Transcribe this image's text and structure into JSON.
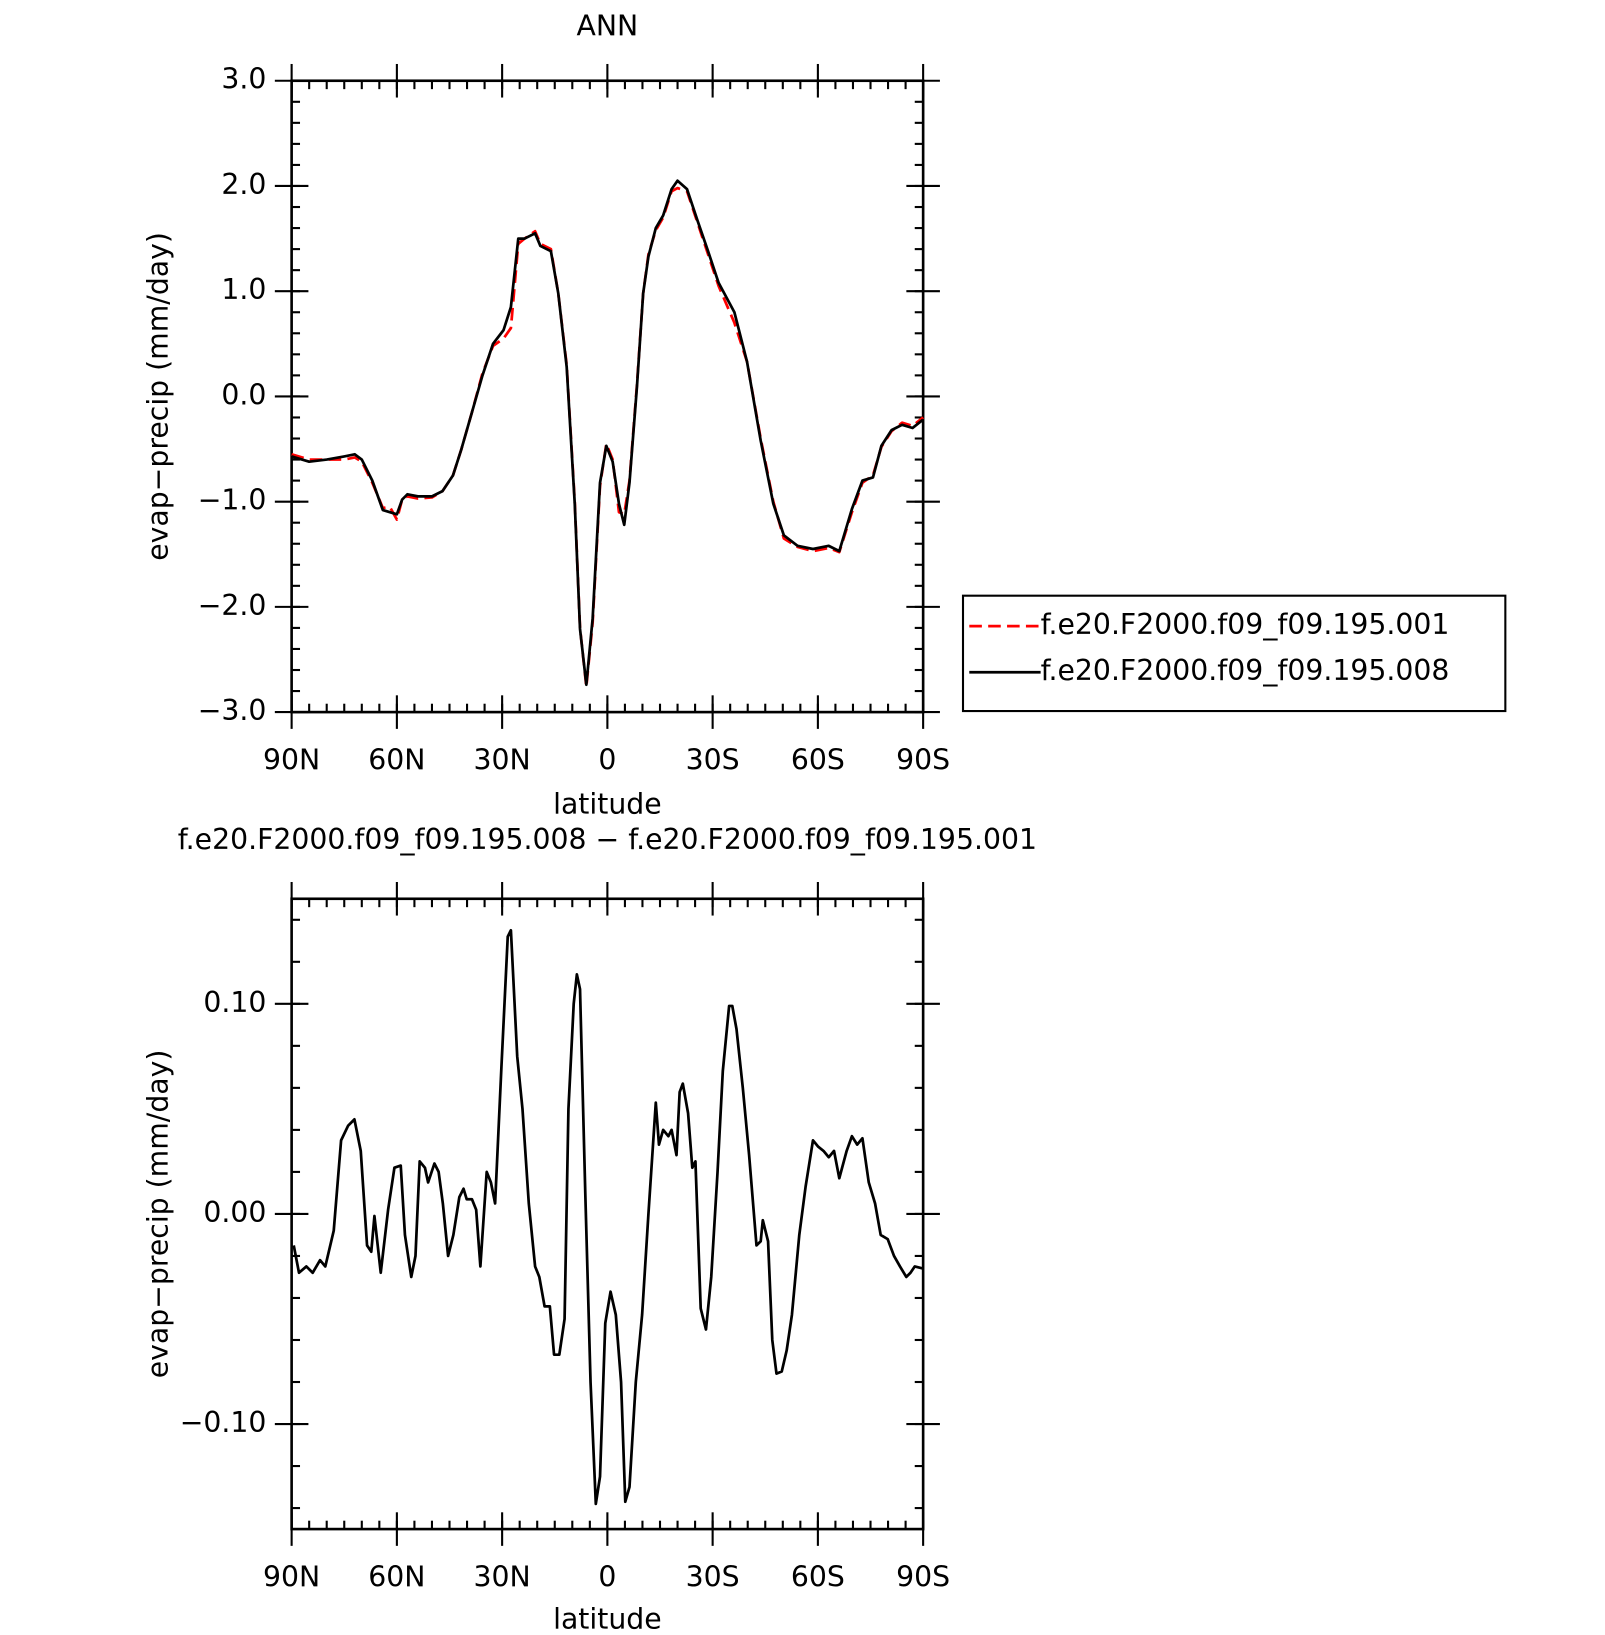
{
  "chart_data": [
    {
      "type": "line",
      "title": "ANN",
      "x_label": "latitude",
      "y_label": "evap−precip (mm/day)",
      "xlim": [
        90,
        -90
      ],
      "ylim": [
        -3,
        3
      ],
      "xticks": [
        {
          "value": 90,
          "label": "90N"
        },
        {
          "value": 60,
          "label": "60N"
        },
        {
          "value": 30,
          "label": "30N"
        },
        0,
        {
          "value": -30,
          "label": "30S"
        },
        {
          "value": -60,
          "label": "60S"
        },
        {
          "value": -90,
          "label": "90S"
        }
      ],
      "yticks": [
        {
          "value": -3,
          "label": "−3.0"
        },
        {
          "value": -2,
          "label": "−2.0"
        },
        {
          "value": -1,
          "label": "−1.0"
        },
        {
          "value": 0,
          "label": "0.0"
        },
        {
          "value": 1,
          "label": "1.0"
        },
        {
          "value": 2,
          "label": "2.0"
        },
        {
          "value": 3,
          "label": "3.0"
        }
      ],
      "x_minor_divisions": 6,
      "y_minor_divisions": 5,
      "legend": "right",
      "x": [
        90,
        85,
        80,
        75,
        72,
        70,
        67,
        64,
        62,
        60,
        58.5,
        57,
        54,
        50,
        47,
        44,
        41.6,
        38.6,
        35.6,
        32.6,
        29.6,
        27.5,
        25.4,
        23.6,
        20.6,
        19.1,
        16.1,
        14,
        11.6,
        9.3,
        7.8,
        6,
        4.2,
        2.1,
        0.3,
        -1.5,
        -3.3,
        -4.8,
        -6.3,
        -8.4,
        -10.2,
        -11.7,
        -13.8,
        -15.9,
        -18.3,
        -20,
        -22.7,
        -25.7,
        -28.7,
        -31.7,
        -36.2,
        -39.8,
        -43.7,
        -47.3,
        -50.3,
        -54.2,
        -58.6,
        -63.1,
        -66.1,
        -69.7,
        -72.7,
        -75.7,
        -78.1,
        -81,
        -84,
        -87,
        -90
      ],
      "series": [
        {
          "name": "f.e20.F2000.f09_f09.195.001",
          "color": "#ff0000",
          "dashed": true,
          "values": [
            -0.55,
            -0.6,
            -0.6,
            -0.6,
            -0.58,
            -0.62,
            -0.82,
            -1.06,
            -1.05,
            -1.17,
            -0.98,
            -0.95,
            -0.97,
            -0.96,
            -0.9,
            -0.75,
            -0.5,
            -0.15,
            0.22,
            0.48,
            0.55,
            0.65,
            1.45,
            1.5,
            1.57,
            1.45,
            1.4,
            0.98,
            0.3,
            -1.0,
            -2.2,
            -2.76,
            -2.15,
            -0.85,
            -0.45,
            -0.6,
            -1.1,
            -1.12,
            -0.8,
            0.1,
            0.98,
            1.35,
            1.58,
            1.7,
            1.95,
            1.98,
            1.95,
            1.65,
            1.35,
            1.05,
            0.7,
            0.33,
            -0.4,
            -1.0,
            -1.35,
            -1.43,
            -1.47,
            -1.44,
            -1.48,
            -1.1,
            -0.82,
            -0.75,
            -0.48,
            -0.33,
            -0.25,
            -0.28,
            -0.2
          ]
        },
        {
          "name": "f.e20.F2000.f09_f09.195.008",
          "color": "#000000",
          "dashed": false,
          "values": [
            -0.57,
            -0.62,
            -0.6,
            -0.57,
            -0.55,
            -0.6,
            -0.8,
            -1.08,
            -1.1,
            -1.12,
            -0.98,
            -0.93,
            -0.95,
            -0.95,
            -0.9,
            -0.75,
            -0.5,
            -0.15,
            0.2,
            0.5,
            0.63,
            0.85,
            1.5,
            1.5,
            1.55,
            1.43,
            1.38,
            0.98,
            0.28,
            -1.02,
            -2.21,
            -2.74,
            -2.11,
            -0.82,
            -0.47,
            -0.62,
            -1.02,
            -1.22,
            -0.82,
            0.08,
            0.98,
            1.33,
            1.6,
            1.72,
            1.97,
            2.05,
            1.97,
            1.67,
            1.38,
            1.08,
            0.8,
            0.33,
            -0.42,
            -1.02,
            -1.32,
            -1.42,
            -1.45,
            -1.42,
            -1.47,
            -1.07,
            -0.8,
            -0.77,
            -0.47,
            -0.32,
            -0.27,
            -0.3,
            -0.22
          ]
        }
      ]
    },
    {
      "type": "line",
      "title": "f.e20.F2000.f09_f09.195.008 − f.e20.F2000.f09_f09.195.001",
      "x_label": "latitude",
      "y_label": "evap−precip (mm/day)",
      "xlim": [
        90,
        -90
      ],
      "ylim": [
        -0.15,
        0.15
      ],
      "xticks": [
        {
          "value": 90,
          "label": "90N"
        },
        {
          "value": 60,
          "label": "60N"
        },
        {
          "value": 30,
          "label": "30N"
        },
        0,
        {
          "value": -30,
          "label": "30S"
        },
        {
          "value": -60,
          "label": "60S"
        },
        {
          "value": -90,
          "label": "90S"
        }
      ],
      "yticks": [
        {
          "value": -0.1,
          "label": "−0.10"
        },
        {
          "value": 0,
          "label": "0.00"
        },
        {
          "value": 0.1,
          "label": "0.10"
        }
      ],
      "x_minor_divisions": 6,
      "y_minor_divisions": 5,
      "x": [
        89.4,
        87.9,
        85.8,
        84.0,
        81.9,
        80.4,
        78.0,
        75.9,
        73.9,
        72.1,
        70.3,
        68.5,
        67.3,
        66.4,
        64.6,
        62.5,
        60.7,
        58.9,
        57.7,
        55.9,
        54.7,
        53.5,
        52.0,
        51.1,
        49.3,
        48.1,
        46.9,
        45.4,
        43.9,
        42.2,
        41.0,
        40.1,
        38.6,
        37.4,
        36.2,
        34.4,
        33.2,
        32.0,
        30.2,
        28.4,
        27.5,
        25.7,
        24.2,
        22.4,
        20.6,
        19.4,
        17.9,
        16.4,
        15.2,
        13.7,
        12.2,
        11.1,
        9.6,
        8.7,
        7.8,
        6.3,
        4.8,
        3.3,
        2.1,
        0.6,
        -0.9,
        -2.4,
        -3.9,
        -5.1,
        -6.3,
        -8.1,
        -9.9,
        -11.7,
        -13.8,
        -14.7,
        -15.9,
        -17.4,
        -18.3,
        -19.7,
        -20.6,
        -21.5,
        -23.0,
        -24.2,
        -25.1,
        -26.6,
        -28.1,
        -29.6,
        -31.4,
        -32.9,
        -34.7,
        -35.6,
        -36.8,
        -38.6,
        -40.4,
        -42.5,
        -43.7,
        -44.3,
        -45.8,
        -47.0,
        -48.2,
        -49.7,
        -51.1,
        -52.6,
        -54.7,
        -56.5,
        -58.6,
        -60.1,
        -61.6,
        -63.1,
        -64.6,
        -66.1,
        -68.2,
        -69.7,
        -71.2,
        -72.7,
        -74.5,
        -76.3,
        -77.9,
        -79.9,
        -81.7,
        -83.4,
        -85.2,
        -86.4,
        -87.6,
        -90
      ],
      "series": [
        {
          "color": "#000000",
          "values": [
            -0.015,
            -0.028,
            -0.025,
            -0.028,
            -0.022,
            -0.025,
            -0.008,
            0.035,
            0.042,
            0.045,
            0.03,
            -0.015,
            -0.018,
            -0.001,
            -0.028,
            0.002,
            0.022,
            0.023,
            -0.01,
            -0.03,
            -0.02,
            0.025,
            0.022,
            0.015,
            0.024,
            0.02,
            0.005,
            -0.02,
            -0.01,
            0.008,
            0.012,
            0.007,
            0.007,
            0.002,
            -0.025,
            0.02,
            0.015,
            0.005,
            0.07,
            0.132,
            0.135,
            0.075,
            0.05,
            0.005,
            -0.025,
            -0.03,
            -0.044,
            -0.044,
            -0.067,
            -0.067,
            -0.05,
            0.05,
            0.1,
            0.114,
            0.107,
            0.01,
            -0.08,
            -0.138,
            -0.125,
            -0.052,
            -0.037,
            -0.048,
            -0.08,
            -0.137,
            -0.13,
            -0.08,
            -0.048,
            0,
            0.053,
            0.033,
            0.04,
            0.037,
            0.04,
            0.028,
            0.058,
            0.062,
            0.048,
            0.022,
            0.025,
            -0.045,
            -0.055,
            -0.03,
            0.02,
            0.068,
            0.099,
            0.099,
            0.088,
            0.06,
            0.028,
            -0.015,
            -0.013,
            -0.003,
            -0.013,
            -0.06,
            -0.076,
            -0.075,
            -0.065,
            -0.048,
            -0.01,
            0.013,
            0.035,
            0.032,
            0.03,
            0.027,
            0.03,
            0.017,
            0.03,
            0.037,
            0.033,
            0.036,
            0.015,
            0.005,
            -0.01,
            -0.012,
            -0.02,
            -0.025,
            -0.03,
            -0.028,
            -0.025,
            -0.026
          ]
        }
      ]
    }
  ]
}
